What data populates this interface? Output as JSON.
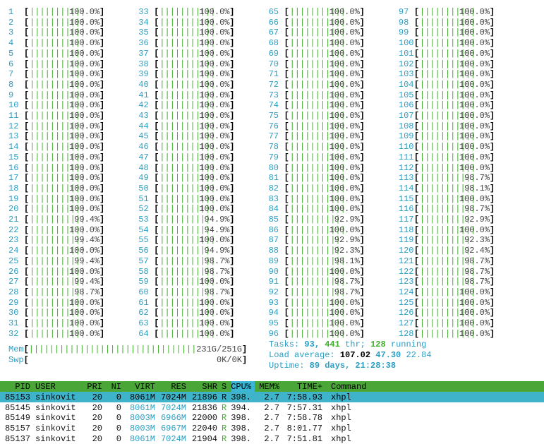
{
  "cpu_meters": {
    "labels": [
      "1",
      "2",
      "3",
      "4",
      "5",
      "6",
      "7",
      "8",
      "9",
      "10",
      "11",
      "12",
      "13",
      "14",
      "15",
      "16",
      "17",
      "18",
      "19",
      "20",
      "21",
      "22",
      "23",
      "24",
      "25",
      "26",
      "27",
      "28",
      "29",
      "30",
      "31",
      "32",
      "33",
      "34",
      "35",
      "36",
      "37",
      "38",
      "39",
      "40",
      "41",
      "42",
      "43",
      "44",
      "45",
      "46",
      "47",
      "48",
      "49",
      "50",
      "51",
      "52",
      "53",
      "54",
      "55",
      "56",
      "57",
      "58",
      "59",
      "60",
      "61",
      "62",
      "63",
      "64",
      "65",
      "66",
      "67",
      "68",
      "69",
      "70",
      "71",
      "72",
      "73",
      "74",
      "75",
      "76",
      "77",
      "78",
      "79",
      "80",
      "81",
      "82",
      "83",
      "84",
      "85",
      "86",
      "87",
      "88",
      "89",
      "90",
      "91",
      "92",
      "93",
      "94",
      "95",
      "96",
      "97",
      "98",
      "99",
      "100",
      "101",
      "102",
      "103",
      "104",
      "105",
      "106",
      "107",
      "108",
      "109",
      "110",
      "111",
      "112",
      "113",
      "114",
      "115",
      "116",
      "117",
      "118",
      "119",
      "120",
      "121",
      "122",
      "123",
      "124",
      "125",
      "126",
      "127",
      "128"
    ],
    "percents": [
      "100.0%",
      "100.0%",
      "100.0%",
      "100.0%",
      "100.0%",
      "100.0%",
      "100.0%",
      "100.0%",
      "100.0%",
      "100.0%",
      "100.0%",
      "100.0%",
      "100.0%",
      "100.0%",
      "100.0%",
      "100.0%",
      "100.0%",
      "100.0%",
      "100.0%",
      "100.0%",
      "99.4%",
      "100.0%",
      "99.4%",
      "100.0%",
      "99.4%",
      "100.0%",
      "99.4%",
      "98.7%",
      "100.0%",
      "100.0%",
      "100.0%",
      "100.0%",
      "100.0%",
      "100.0%",
      "100.0%",
      "100.0%",
      "100.0%",
      "100.0%",
      "100.0%",
      "100.0%",
      "100.0%",
      "100.0%",
      "100.0%",
      "100.0%",
      "100.0%",
      "100.0%",
      "100.0%",
      "100.0%",
      "100.0%",
      "100.0%",
      "100.0%",
      "100.0%",
      "94.9%",
      "94.9%",
      "100.0%",
      "94.9%",
      "98.7%",
      "98.7%",
      "100.0%",
      "98.7%",
      "100.0%",
      "100.0%",
      "100.0%",
      "100.0%",
      "100.0%",
      "100.0%",
      "100.0%",
      "100.0%",
      "100.0%",
      "100.0%",
      "100.0%",
      "100.0%",
      "100.0%",
      "100.0%",
      "100.0%",
      "100.0%",
      "100.0%",
      "100.0%",
      "100.0%",
      "100.0%",
      "100.0%",
      "100.0%",
      "100.0%",
      "100.0%",
      "92.9%",
      "100.0%",
      "92.9%",
      "92.3%",
      "98.1%",
      "100.0%",
      "98.7%",
      "98.7%",
      "100.0%",
      "100.0%",
      "100.0%",
      "100.0%",
      "100.0%",
      "100.0%",
      "100.0%",
      "100.0%",
      "100.0%",
      "100.0%",
      "100.0%",
      "100.0%",
      "100.0%",
      "100.0%",
      "100.0%",
      "100.0%",
      "100.0%",
      "100.0%",
      "100.0%",
      "100.0%",
      "98.7%",
      "98.1%",
      "100.0%",
      "98.7%",
      "92.9%",
      "100.0%",
      "92.3%",
      "92.4%",
      "98.7%",
      "98.7%",
      "98.7%",
      "100.0%",
      "100.0%",
      "100.0%",
      "100.0%",
      "100.0%"
    ]
  },
  "memory": {
    "label": "Mem",
    "value": "231G/251G"
  },
  "swap": {
    "label": "Swp",
    "value": "0K/0K"
  },
  "tasks": [
    "Tasks:",
    "93,",
    "441",
    "thr;",
    "128",
    "running"
  ],
  "load_average": [
    "Load average:",
    "107.02",
    "47.30",
    "22.84"
  ],
  "uptime": [
    "Uptime:",
    "89 days, 21:28:38"
  ],
  "process_table": {
    "columns": [
      "PID",
      "USER",
      "PRI",
      "NI",
      "VIRT",
      "RES",
      "SHR",
      "S",
      "CPU%",
      "MEM%",
      "TIME+",
      "Command"
    ],
    "rows": [
      [
        "85153",
        "sinkovit",
        "20",
        "0",
        "8061M",
        "7024M",
        "21896",
        "R",
        "398.",
        "2.7",
        "7:58.93",
        "xhpl"
      ],
      [
        "85145",
        "sinkovit",
        "20",
        "0",
        "8061M",
        "7024M",
        "21836",
        "R",
        "394.",
        "2.7",
        "7:57.31",
        "xhpl"
      ],
      [
        "85149",
        "sinkovit",
        "20",
        "0",
        "8003M",
        "6966M",
        "22000",
        "R",
        "398.",
        "2.7",
        "7:58.78",
        "xhpl"
      ],
      [
        "85157",
        "sinkovit",
        "20",
        "0",
        "8003M",
        "6967M",
        "22040",
        "R",
        "398.",
        "2.7",
        "8:01.77",
        "xhpl"
      ],
      [
        "85137",
        "sinkovit",
        "20",
        "0",
        "8061M",
        "7024M",
        "21904",
        "R",
        "398.",
        "2.7",
        "7:51.81",
        "xhpl"
      ]
    ]
  }
}
